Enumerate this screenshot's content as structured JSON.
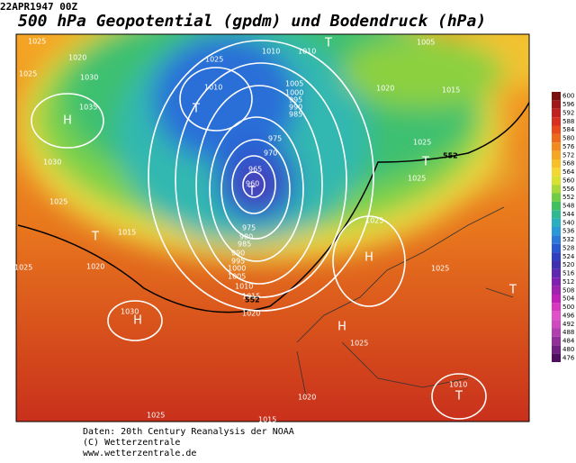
{
  "header": {
    "date": "22APR1947 00Z",
    "title": "500 hPa Geopotential (gpdm) und Bodendruck (hPa)"
  },
  "colorbar": {
    "labels": [
      "600",
      "596",
      "592",
      "588",
      "584",
      "580",
      "576",
      "572",
      "568",
      "564",
      "560",
      "556",
      "552",
      "548",
      "544",
      "540",
      "536",
      "532",
      "528",
      "524",
      "520",
      "516",
      "512",
      "508",
      "504",
      "500",
      "496",
      "492",
      "488",
      "484",
      "480",
      "476"
    ]
  },
  "isobar_labels": [
    "1025",
    "1020",
    "1025",
    "1030",
    "1035",
    "1030",
    "1025",
    "1015",
    "1020",
    "1025",
    "1030",
    "1025",
    "1015",
    "1020",
    "1025",
    "1025",
    "1025",
    "1025",
    "1025",
    "1020",
    "1015",
    "1005",
    "1010",
    "1010",
    "1025",
    "1010",
    "1005",
    "1000",
    "995",
    "990",
    "985",
    "975",
    "970",
    "965",
    "960",
    "975",
    "980",
    "985",
    "990",
    "995",
    "1000",
    "1005",
    "1010",
    "1015",
    "1020",
    "1010"
  ],
  "contour_labels": [
    "552",
    "552"
  ],
  "pressure_centers": [
    "H",
    "T",
    "T",
    "T",
    "T",
    "T",
    "H",
    "H",
    "H",
    "T",
    "T"
  ],
  "footer": {
    "lines": [
      "Daten: 20th Century Reanalysis der NOAA",
      "(C) Wetterzentrale",
      "www.wetterzentrale.de"
    ]
  }
}
